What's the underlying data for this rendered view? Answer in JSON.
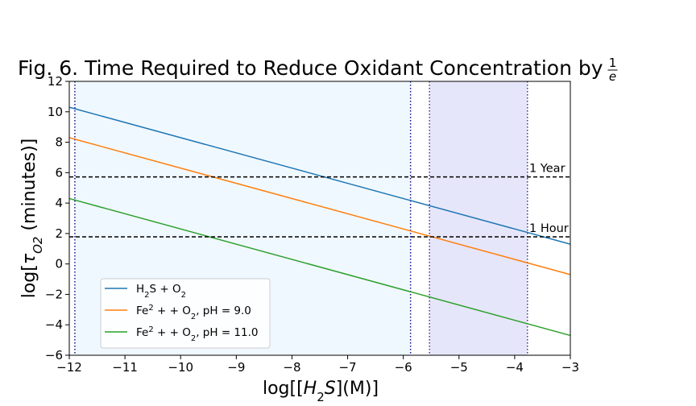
{
  "chart_data": {
    "type": "line",
    "title": "Fig. 6. Time Required to Reduce Oxidant Concentration by",
    "title_fraction": {
      "numerator": "1",
      "denominator": "e"
    },
    "xlabel": {
      "prefix": "log[[",
      "var": "H",
      "sub": "2",
      "var2": "S",
      "suffix": "](M)]"
    },
    "ylabel": {
      "prefix": "log[",
      "var": "τ",
      "sub": "O2",
      "suffix": " (minutes)]"
    },
    "xlim": [
      -12,
      -3
    ],
    "ylim": [
      -6,
      12
    ],
    "xticks": [
      -12,
      -11,
      -10,
      -9,
      -8,
      -7,
      -6,
      -5,
      -4,
      -3
    ],
    "yticks": [
      -6,
      -4,
      -2,
      0,
      2,
      4,
      6,
      8,
      10,
      12
    ],
    "grid": false,
    "legend_position": "lower-left",
    "series": [
      {
        "name": "H2S + O2",
        "legend": {
          "a": "H",
          "a_sub": "2",
          "b": "S + O",
          "b_sub": "2",
          "c": ""
        },
        "color": "#1f77b4",
        "x": [
          -12,
          -3
        ],
        "y": [
          10.3,
          1.3
        ]
      },
      {
        "name": "Fe2 + + O2, pH = 9.0",
        "legend": {
          "a": "Fe",
          "a_sup": "2",
          "b": " +  + O",
          "b_sub": "2",
          "c": ", pH = 9.0"
        },
        "color": "#ff7f0e",
        "x": [
          -12,
          -3
        ],
        "y": [
          8.3,
          -0.7
        ]
      },
      {
        "name": "Fe2 + + O2, pH = 11.0",
        "legend": {
          "a": "Fe",
          "a_sup": "2",
          "b": " +  + O",
          "b_sub": "2",
          "c": ", pH = 11.0"
        },
        "color": "#2ca02c",
        "x": [
          -12,
          -3
        ],
        "y": [
          4.3,
          -4.7
        ]
      }
    ],
    "reference_lines": [
      {
        "label": "1 Year",
        "y": 5.72,
        "style": "dashed",
        "color": "#000000"
      },
      {
        "label": "1 Hour",
        "y": 1.78,
        "style": "dashed",
        "color": "#000000"
      }
    ],
    "vertical_lines": [
      {
        "x": -11.9,
        "style": "dotted",
        "color": "#0f0f8f"
      },
      {
        "x": -5.87,
        "style": "dotted",
        "color": "#0f0f8f"
      },
      {
        "x": -5.53,
        "style": "dotted",
        "color": "#5a2a8a"
      },
      {
        "x": -3.77,
        "style": "dotted",
        "color": "#5a2a8a"
      }
    ],
    "shaded_regions": [
      {
        "x_range": [
          -11.9,
          -5.87
        ],
        "color": "#f0f8ff"
      },
      {
        "x_range": [
          -5.53,
          -3.77
        ],
        "color": "#e6e6fa"
      }
    ]
  }
}
